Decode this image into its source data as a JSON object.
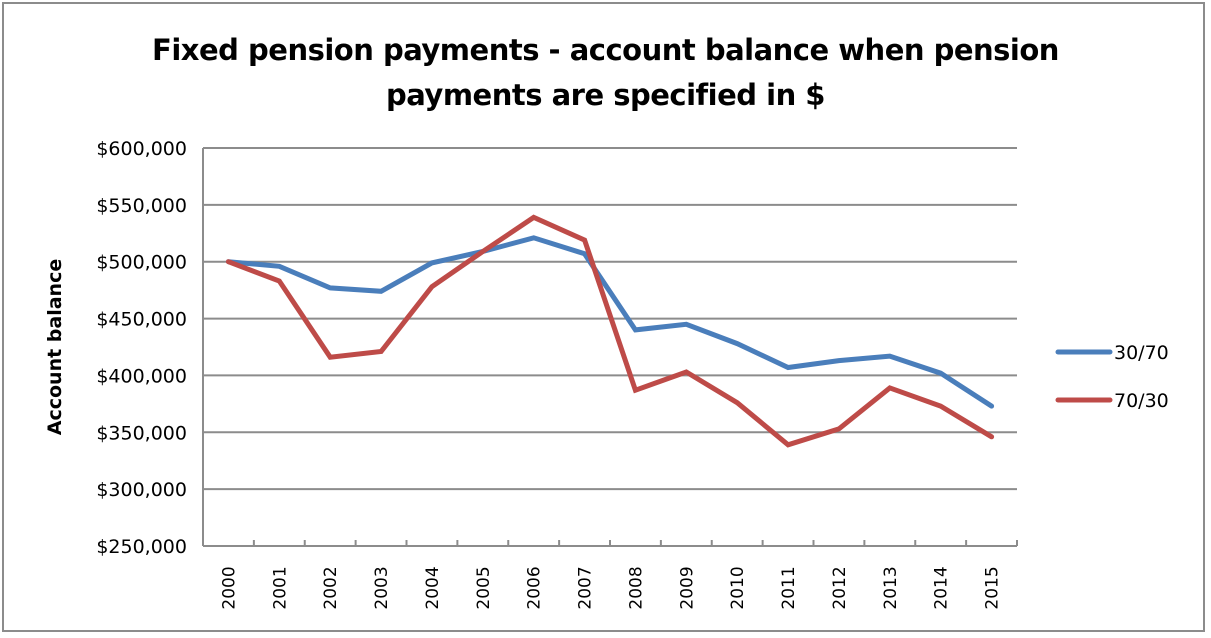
{
  "chart_data": {
    "type": "line",
    "title": "Fixed pension payments - account balance when pension payments are specified in $",
    "title_lines": [
      "Fixed pension payments - account balance when pension",
      "payments are specified in $"
    ],
    "xlabel": "",
    "ylabel": "Account balance",
    "ylim": [
      250000,
      600000
    ],
    "yticks": [
      250000,
      300000,
      350000,
      400000,
      450000,
      500000,
      550000,
      600000
    ],
    "ytick_labels": [
      "$250,000",
      "$300,000",
      "$350,000",
      "$400,000",
      "$450,000",
      "$500,000",
      "$550,000",
      "$600,000"
    ],
    "categories": [
      "2000",
      "2001",
      "2002",
      "2003",
      "2004",
      "2005",
      "2006",
      "2007",
      "2008",
      "2009",
      "2010",
      "2011",
      "2012",
      "2013",
      "2014",
      "2015"
    ],
    "series": [
      {
        "name": "30/70",
        "color": "#4a7ebb",
        "values": [
          500000,
          496000,
          477000,
          474000,
          499000,
          509000,
          521000,
          507000,
          440000,
          445000,
          428000,
          407000,
          413000,
          417000,
          402000,
          373000
        ]
      },
      {
        "name": "70/30",
        "color": "#be4b48",
        "values": [
          500000,
          483000,
          416000,
          421000,
          478000,
          509000,
          539000,
          519000,
          387000,
          403000,
          376000,
          339000,
          353000,
          389000,
          373000,
          346000
        ]
      }
    ],
    "grid": true,
    "legend_position": "right"
  }
}
